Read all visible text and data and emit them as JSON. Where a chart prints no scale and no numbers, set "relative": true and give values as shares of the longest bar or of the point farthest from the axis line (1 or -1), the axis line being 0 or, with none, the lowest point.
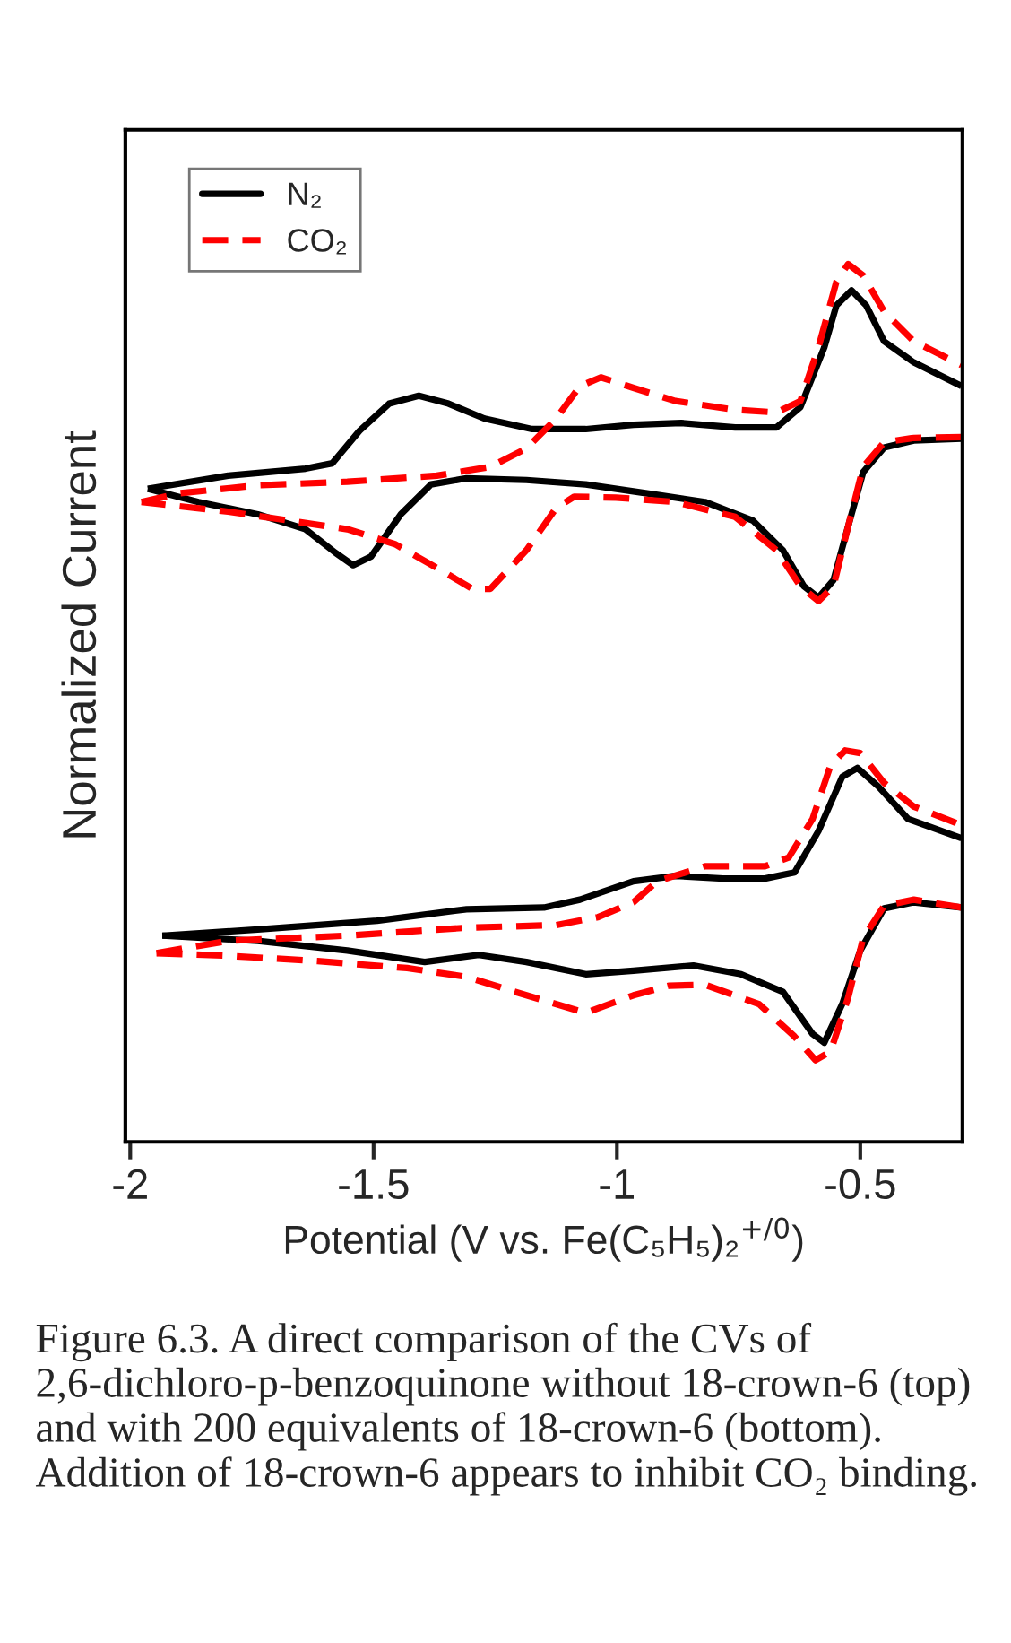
{
  "chart_data": {
    "type": "line",
    "relative": true,
    "xlabel": "Potential (V vs. Fe(C₅H₅)₂$^{+/0}$)",
    "ylabel": "Normalized Current",
    "xlim": [
      -2.01,
      -0.29
    ],
    "xticks": [
      -2,
      -1.5,
      -1,
      -0.5
    ],
    "legend": "top left",
    "grid": false,
    "series": [
      {
        "name": "N₂",
        "color": "#000000",
        "line_style": "solid",
        "x": [
          -1.964,
          -1.799,
          -1.64,
          -1.585,
          -1.529,
          -1.468,
          -1.407,
          -1.346,
          -1.272,
          -1.174,
          -1.064,
          -0.966,
          -0.868,
          -0.757,
          -0.672,
          -0.623,
          -0.574,
          -0.549,
          -0.518,
          -0.488,
          -0.451,
          -0.39,
          -0.292
        ],
        "values": [
          0.744,
          0.759,
          0.767,
          0.773,
          0.81,
          0.841,
          0.85,
          0.841,
          0.824,
          0.812,
          0.812,
          0.817,
          0.819,
          0.814,
          0.814,
          0.837,
          0.905,
          0.953,
          0.97,
          0.953,
          0.912,
          0.888,
          0.861
        ]
      },
      {
        "color": "#000000",
        "line_style": "solid",
        "x": [
          -0.292,
          -0.39,
          -0.451,
          -0.494,
          -0.525,
          -0.555,
          -0.586,
          -0.616,
          -0.659,
          -0.721,
          -0.819,
          -0.941,
          -1.064,
          -1.186,
          -1.309,
          -1.382,
          -1.444,
          -1.505,
          -1.542,
          -1.578,
          -1.64,
          -1.738,
          -1.86,
          -1.964
        ],
        "values": [
          0.801,
          0.799,
          0.791,
          0.763,
          0.701,
          0.64,
          0.62,
          0.633,
          0.674,
          0.708,
          0.729,
          0.739,
          0.749,
          0.754,
          0.756,
          0.749,
          0.715,
          0.667,
          0.657,
          0.671,
          0.698,
          0.715,
          0.729,
          0.744
        ]
      },
      {
        "name": "CO₂",
        "color": "#ff0000",
        "line_style": "dashed",
        "x": [
          -1.977,
          -1.897,
          -1.738,
          -1.554,
          -1.37,
          -1.26,
          -1.186,
          -1.125,
          -1.076,
          -1.033,
          -0.966,
          -0.88,
          -0.757,
          -0.672,
          -0.623,
          -0.586,
          -0.549,
          -0.525,
          -0.494,
          -0.451,
          -0.39,
          -0.292
        ],
        "values": [
          0.729,
          0.739,
          0.748,
          0.752,
          0.759,
          0.769,
          0.79,
          0.824,
          0.861,
          0.871,
          0.859,
          0.844,
          0.834,
          0.831,
          0.844,
          0.905,
          0.98,
          1,
          0.987,
          0.946,
          0.912,
          0.885
        ]
      },
      {
        "color": "#ff0000",
        "line_style": "dashed",
        "x": [
          -0.292,
          -0.39,
          -0.451,
          -0.494,
          -0.525,
          -0.555,
          -0.586,
          -0.623,
          -0.672,
          -0.757,
          -0.88,
          -1.002,
          -1.088,
          -1.125,
          -1.186,
          -1.26,
          -1.297,
          -1.358,
          -1.456,
          -1.554,
          -1.676,
          -1.799,
          -1.977
        ],
        "values": [
          0.803,
          0.802,
          0.797,
          0.769,
          0.701,
          0.633,
          0.616,
          0.633,
          0.674,
          0.712,
          0.729,
          0.734,
          0.735,
          0.722,
          0.674,
          0.63,
          0.63,
          0.65,
          0.681,
          0.698,
          0.708,
          0.718,
          0.729
        ]
      },
      {
        "color": "#000000",
        "line_style": "solid",
        "x": [
          -1.934,
          -1.738,
          -1.493,
          -1.309,
          -1.15,
          -1.076,
          -0.966,
          -0.88,
          -0.782,
          -0.696,
          -0.635,
          -0.586,
          -0.537,
          -0.506,
          -0.463,
          -0.402,
          -0.292
        ],
        "values": [
          0.235,
          0.242,
          0.252,
          0.265,
          0.267,
          0.276,
          0.297,
          0.303,
          0.3,
          0.3,
          0.307,
          0.354,
          0.416,
          0.426,
          0.405,
          0.368,
          0.346
        ]
      },
      {
        "color": "#000000",
        "line_style": "solid",
        "x": [
          -0.292,
          -0.39,
          -0.451,
          -0.5,
          -0.537,
          -0.574,
          -0.598,
          -0.659,
          -0.745,
          -0.843,
          -0.966,
          -1.064,
          -1.186,
          -1.284,
          -1.395,
          -1.554,
          -1.738,
          -1.934
        ],
        "values": [
          0.267,
          0.273,
          0.266,
          0.218,
          0.157,
          0.113,
          0.123,
          0.171,
          0.191,
          0.201,
          0.195,
          0.191,
          0.205,
          0.213,
          0.205,
          0.218,
          0.229,
          0.235
        ]
      },
      {
        "color": "#ff0000",
        "line_style": "dashed",
        "x": [
          -1.946,
          -1.799,
          -1.554,
          -1.309,
          -1.125,
          -1.039,
          -0.966,
          -0.917,
          -0.819,
          -0.696,
          -0.647,
          -0.598,
          -0.561,
          -0.531,
          -0.5,
          -0.451,
          -0.39,
          -0.292
        ],
        "values": [
          0.215,
          0.229,
          0.235,
          0.244,
          0.247,
          0.256,
          0.273,
          0.297,
          0.314,
          0.314,
          0.324,
          0.368,
          0.429,
          0.446,
          0.443,
          0.409,
          0.382,
          0.361
        ]
      },
      {
        "color": "#ff0000",
        "line_style": "dashed",
        "x": [
          -0.292,
          -0.39,
          -0.451,
          -0.494,
          -0.525,
          -0.561,
          -0.592,
          -0.635,
          -0.708,
          -0.819,
          -0.892,
          -0.966,
          -1.064,
          -1.186,
          -1.309,
          -1.431,
          -1.615,
          -1.799,
          -1.946
        ],
        "values": [
          0.267,
          0.276,
          0.269,
          0.232,
          0.164,
          0.103,
          0.093,
          0.12,
          0.157,
          0.179,
          0.178,
          0.167,
          0.147,
          0.167,
          0.188,
          0.198,
          0.206,
          0.212,
          0.215
        ]
      }
    ],
    "annotations": [
      "Figure 6.3. A direct comparison of the CVs of 2,6-dichloro-p-benzoquinone without 18-crown-6 (top) and with 200 equivalents of 18-crown-6 (bottom). Addition of 18-crown-6 appears to inhibit CO₂ binding."
    ]
  }
}
